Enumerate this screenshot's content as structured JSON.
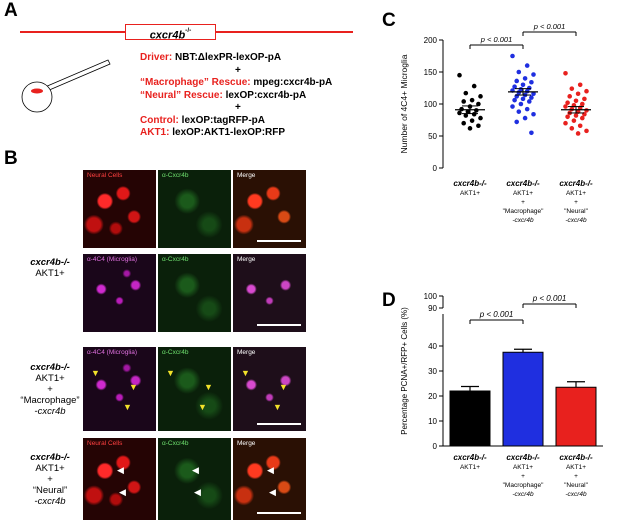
{
  "panelA": {
    "letter": "A",
    "gene_label": "cxcr4b",
    "gene_superscript": "-/-",
    "lines": [
      {
        "prefix": "Driver:",
        "rest": " NBT:ΔlexPR-lexOP-pA"
      },
      {
        "prefix": "",
        "rest": "+"
      },
      {
        "prefix": "“Macrophage” Rescue:",
        "rest": " mpeg:cxcr4b-pA"
      },
      {
        "prefix": "“Neural” Rescue:",
        "rest": " lexOP:cxcr4b-pA"
      },
      {
        "prefix": "",
        "rest": "+"
      },
      {
        "prefix": "Control:",
        "rest": " lexOP:tagRFP-pA"
      },
      {
        "prefix": "AKT1:",
        "rest": " lexOP:AKT1-lexOP:RFP"
      }
    ]
  },
  "panelB": {
    "letter": "B",
    "rows": [
      {
        "label_lines": [
          "cxcr4b-/-",
          "AKT1+"
        ],
        "tiles": [
          "Neural Cells",
          "α-Cxcr4b",
          "Merge"
        ],
        "colors": [
          "red",
          "green",
          "merge-red"
        ]
      },
      {
        "label_lines": [],
        "tiles": [
          "α-4C4 (Microglia)",
          "α-Cxcr4b",
          "Merge"
        ],
        "colors": [
          "magenta",
          "green",
          "merge-magenta"
        ]
      },
      {
        "label_lines": [
          "cxcr4b-/-",
          "AKT1+",
          "+",
          "“Macrophage”",
          "-cxcr4b"
        ],
        "tiles": [
          "α-4C4 (Microglia)",
          "α-Cxcr4b",
          "Merge"
        ],
        "colors": [
          "magenta",
          "green",
          "merge-magenta"
        ]
      },
      {
        "label_lines": [
          "cxcr4b-/-",
          "AKT1+",
          "+",
          "“Neural”",
          "-cxcr4b"
        ],
        "tiles": [
          "Neural Cells",
          "α-Cxcr4b",
          "Merge"
        ],
        "colors": [
          "red",
          "green",
          "merge-red"
        ]
      }
    ]
  },
  "panelC": {
    "letter": "C",
    "chart_data": {
      "type": "scatter",
      "ylabel": "Number of 4C4+ Microglia",
      "ylim": [
        0,
        200
      ],
      "yticks": [
        0,
        50,
        100,
        150,
        200
      ],
      "groups": [
        {
          "label_lines": [
            "cxcr4b-/-",
            "AKT1+"
          ],
          "color": "#000000",
          "mean": 91,
          "sem": 6,
          "values": [
            145,
            128,
            117,
            112,
            106,
            104,
            100,
            96,
            92,
            90,
            88,
            86,
            84,
            82,
            78,
            74,
            70,
            66,
            62
          ]
        },
        {
          "label_lines": [
            "cxcr4b-/-",
            "AKT1+",
            "+",
            "\"Macrophage\"",
            "-cxcr4b"
          ],
          "color": "#1f2fe0",
          "mean": 119,
          "sem": 5,
          "values": [
            175,
            160,
            150,
            146,
            140,
            136,
            134,
            130,
            127,
            125,
            123,
            121,
            120,
            118,
            116,
            114,
            112,
            110,
            108,
            106,
            104,
            100,
            96,
            92,
            88,
            84,
            78,
            72,
            55
          ]
        },
        {
          "label_lines": [
            "cxcr4b-/-",
            "AKT1+",
            "+",
            "\"Neural\"",
            "-cxcr4b"
          ],
          "color": "#e8211e",
          "mean": 91,
          "sem": 5,
          "values": [
            148,
            130,
            124,
            120,
            116,
            112,
            108,
            105,
            102,
            100,
            98,
            96,
            94,
            92,
            90,
            88,
            86,
            84,
            82,
            80,
            78,
            74,
            70,
            66,
            62,
            58,
            54
          ]
        }
      ],
      "annotations": [
        {
          "text": "p < 0.001",
          "from": 0,
          "to": 1
        },
        {
          "text": "p < 0.001",
          "from": 1,
          "to": 2
        }
      ]
    }
  },
  "panelD": {
    "letter": "D",
    "chart_data": {
      "type": "bar",
      "ylabel": "Percentage PCNA+/RFP+ Cells (%)",
      "yticks_lower": [
        0,
        10,
        20,
        30,
        40
      ],
      "yticks_upper": [
        90,
        100
      ],
      "values": [
        22,
        37.5,
        23.5
      ],
      "errors": [
        1.8,
        1.2,
        2.2
      ],
      "colors": [
        "#000000",
        "#1f2fe0",
        "#e8211e"
      ],
      "categories": [
        [
          "cxcr4b-/-",
          "AKT1+"
        ],
        [
          "cxcr4b-/-",
          "AKT1+",
          "+",
          "\"Macrophage\"",
          "-cxcr4b"
        ],
        [
          "cxcr4b-/-",
          "AKT1+",
          "+",
          "\"Neural\"",
          "-cxcr4b"
        ]
      ],
      "annotations": [
        {
          "text": "p < 0.001",
          "from": 0,
          "to": 1
        },
        {
          "text": "p < 0.001",
          "from": 1,
          "to": 2
        }
      ]
    }
  }
}
